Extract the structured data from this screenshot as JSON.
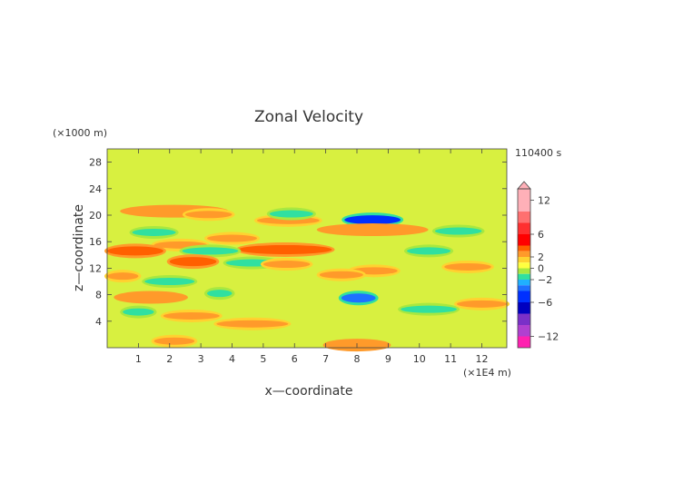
{
  "chart_data": {
    "type": "heatmap",
    "title": "Zonal Velocity",
    "xlabel": "x—coordinate",
    "ylabel": "z—coordinate",
    "x_unit": "(×1E4 m)",
    "y_unit": "(×1000 m)",
    "time_label": "110400 s",
    "xlim": [
      0,
      12.8
    ],
    "ylim": [
      0,
      30
    ],
    "x_ticks": [
      1,
      2,
      3,
      4,
      5,
      6,
      7,
      8,
      9,
      10,
      11,
      12
    ],
    "y_ticks": [
      4,
      8,
      12,
      16,
      20,
      24,
      28
    ],
    "grid": false,
    "legend": "right",
    "colorbar": {
      "ticks": [
        "12",
        "6",
        "2",
        "0",
        "−2",
        "−6",
        "−12"
      ],
      "tick_values": [
        12,
        6,
        2,
        0,
        -2,
        -6,
        -12
      ],
      "range": [
        -14,
        14
      ],
      "bands": [
        {
          "from": 10,
          "to": 14,
          "color": "#ffb0b8"
        },
        {
          "from": 8,
          "to": 10,
          "color": "#ff7070"
        },
        {
          "from": 6,
          "to": 8,
          "color": "#ff3030"
        },
        {
          "from": 4,
          "to": 6,
          "color": "#ff0000"
        },
        {
          "from": 3,
          "to": 4,
          "color": "#ff6000"
        },
        {
          "from": 2,
          "to": 3,
          "color": "#ff9a2a"
        },
        {
          "from": 1,
          "to": 2,
          "color": "#ffd230"
        },
        {
          "from": 0,
          "to": 1,
          "color": "#ffff40"
        },
        {
          "from": -1,
          "to": 0,
          "color": "#a8e840"
        },
        {
          "from": -2,
          "to": -1,
          "color": "#30e0a0"
        },
        {
          "from": -3,
          "to": -2,
          "color": "#20b0ff"
        },
        {
          "from": -4,
          "to": -3,
          "color": "#1e70ff"
        },
        {
          "from": -6,
          "to": -4,
          "color": "#0030ff"
        },
        {
          "from": -8,
          "to": -6,
          "color": "#0000c0"
        },
        {
          "from": -10,
          "to": -8,
          "color": "#7a30c8"
        },
        {
          "from": -12,
          "to": -10,
          "color": "#b040d0"
        },
        {
          "from": -14,
          "to": -12,
          "color": "#ff20b0"
        }
      ]
    },
    "features": [
      {
        "x": [
          0.5,
          3.8
        ],
        "z": 20.6,
        "value": 2.5
      },
      {
        "x": [
          2.5,
          4.0
        ],
        "z": 20.1,
        "value": 2
      },
      {
        "x": [
          4.8,
          6.8
        ],
        "z": 19.2,
        "value": 2
      },
      {
        "x": [
          7.6,
          9.4
        ],
        "z": 19.3,
        "value": -4.5
      },
      {
        "x": [
          6.8,
          10.2
        ],
        "z": 17.8,
        "value": 2.5
      },
      {
        "x": [
          0.8,
          2.2
        ],
        "z": 17.4,
        "value": -2
      },
      {
        "x": [
          1.5,
          3.2
        ],
        "z": 15.5,
        "value": 2
      },
      {
        "x": [
          3.2,
          4.8
        ],
        "z": 16.5,
        "value": 2
      },
      {
        "x": [
          4.2,
          7.2
        ],
        "z": 14.8,
        "value": 3
      },
      {
        "x": [
          0.0,
          1.8
        ],
        "z": 14.6,
        "value": 3
      },
      {
        "x": [
          2.4,
          4.2
        ],
        "z": 14.6,
        "value": -2
      },
      {
        "x": [
          2.0,
          3.5
        ],
        "z": 13.0,
        "value": 3
      },
      {
        "x": [
          3.8,
          5.5
        ],
        "z": 12.8,
        "value": -2
      },
      {
        "x": [
          5.0,
          6.5
        ],
        "z": 12.6,
        "value": 2
      },
      {
        "x": [
          7.8,
          9.3
        ],
        "z": 11.6,
        "value": 2
      },
      {
        "x": [
          10.8,
          12.3
        ],
        "z": 12.2,
        "value": 2
      },
      {
        "x": [
          6.8,
          8.2
        ],
        "z": 11.0,
        "value": 2
      },
      {
        "x": [
          1.2,
          2.8
        ],
        "z": 10.0,
        "value": -2
      },
      {
        "x": [
          0.0,
          1.0
        ],
        "z": 10.8,
        "value": 2
      },
      {
        "x": [
          0.3,
          2.5
        ],
        "z": 7.6,
        "value": 2.5
      },
      {
        "x": [
          3.2,
          4.0
        ],
        "z": 8.2,
        "value": -2
      },
      {
        "x": [
          7.5,
          8.6
        ],
        "z": 7.5,
        "value": -3.5
      },
      {
        "x": [
          9.4,
          11.2
        ],
        "z": 5.8,
        "value": -2
      },
      {
        "x": [
          11.2,
          12.8
        ],
        "z": 6.6,
        "value": 2
      },
      {
        "x": [
          0.5,
          1.5
        ],
        "z": 5.4,
        "value": -2
      },
      {
        "x": [
          1.8,
          3.6
        ],
        "z": 4.8,
        "value": 2
      },
      {
        "x": [
          3.5,
          5.8
        ],
        "z": 3.6,
        "value": 2
      },
      {
        "x": [
          7.0,
          9.0
        ],
        "z": 0.4,
        "value": 2.5
      },
      {
        "x": [
          1.5,
          2.8
        ],
        "z": 1.0,
        "value": 2
      },
      {
        "x": [
          10.5,
          12.0
        ],
        "z": 17.6,
        "value": -2
      },
      {
        "x": [
          5.2,
          6.6
        ],
        "z": 20.2,
        "value": -2
      },
      {
        "x": [
          9.6,
          11.0
        ],
        "z": 14.6,
        "value": -2
      }
    ]
  }
}
